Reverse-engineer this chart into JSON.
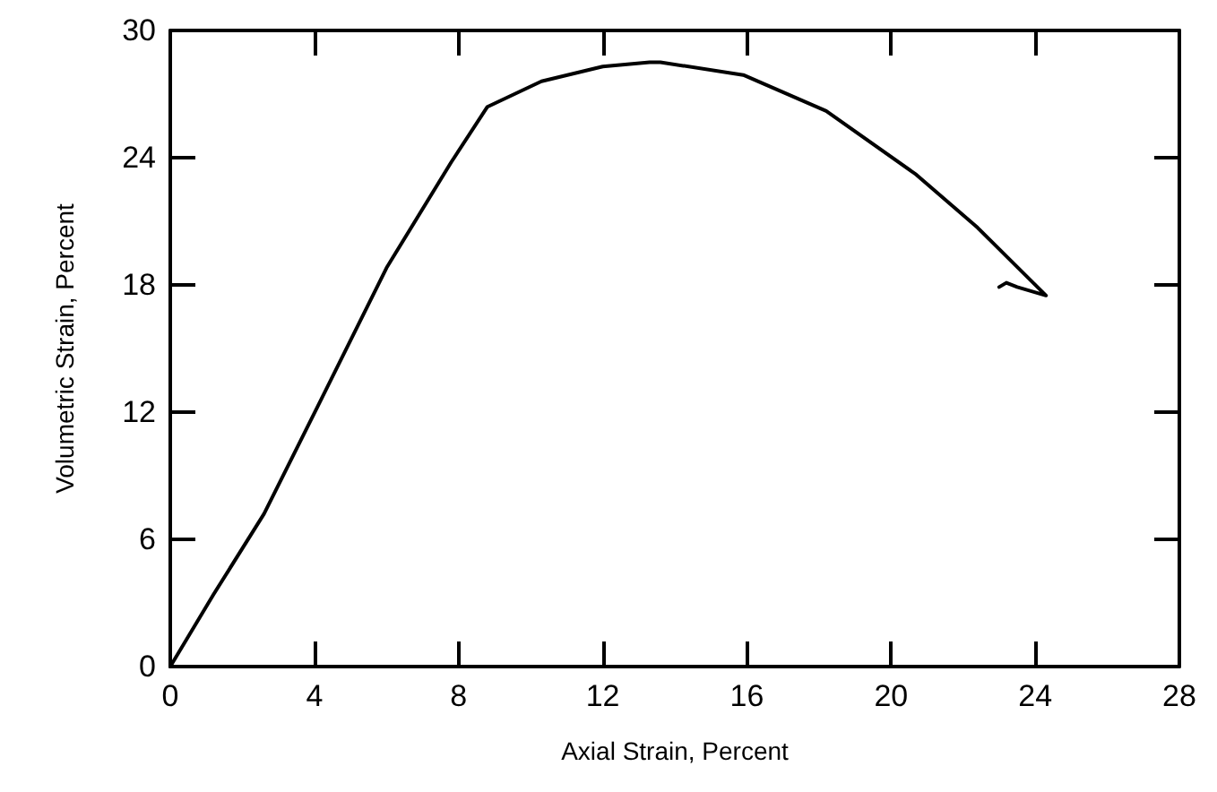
{
  "chart_data": {
    "type": "line",
    "xlabel": "Axial Strain, Percent",
    "ylabel": "Volumetric Strain, Percent",
    "xlim": [
      0,
      28
    ],
    "xticks": [
      0,
      4,
      8,
      12,
      16,
      20,
      24,
      28
    ],
    "ylim": [
      0,
      30
    ],
    "yticks": [
      0,
      6,
      12,
      18,
      24,
      30
    ],
    "grid": false,
    "marker": "none",
    "line_style": "solid",
    "series": [
      {
        "color": "#000000",
        "x": [
          0,
          1.2,
          2.6,
          4.1,
          6.0,
          7.8,
          8.8,
          10.3,
          12.0,
          13.3,
          13.6,
          15.9,
          18.2,
          20.7,
          22.4,
          24.3,
          23.5,
          23.2,
          23.0
        ],
        "values": [
          0,
          3.4,
          7.2,
          12.3,
          18.8,
          23.8,
          26.4,
          27.6,
          28.3,
          28.5,
          28.5,
          27.9,
          26.2,
          23.2,
          20.7,
          17.5,
          17.9,
          18.1,
          17.9
        ]
      }
    ]
  }
}
